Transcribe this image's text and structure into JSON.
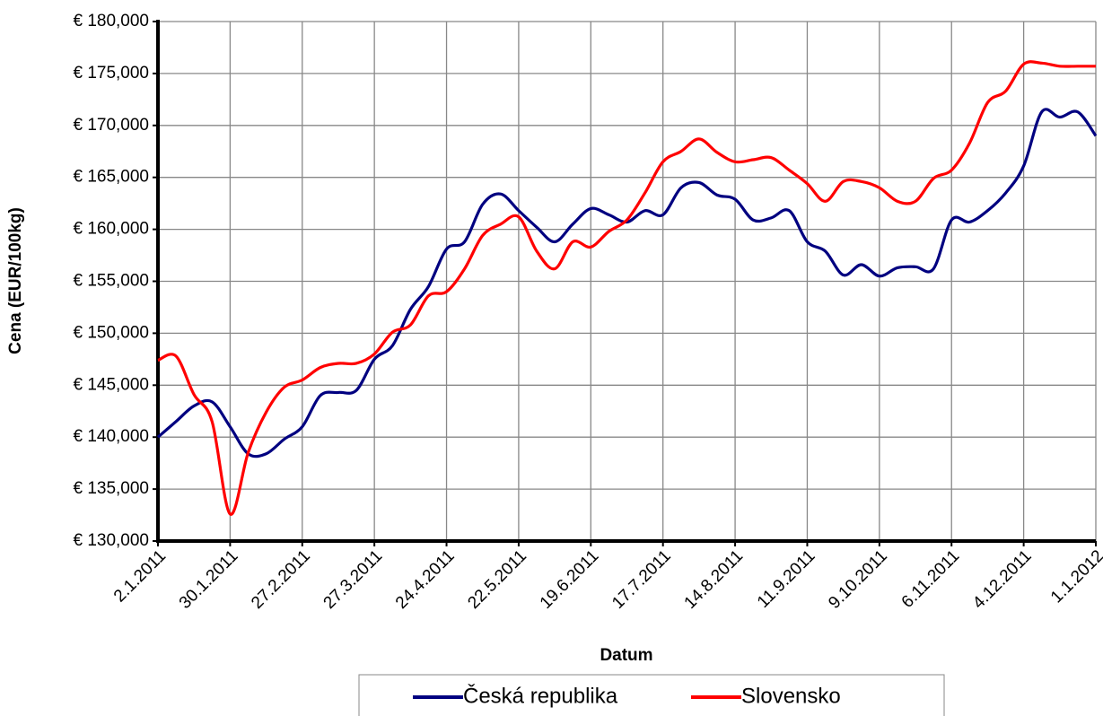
{
  "chart_data": {
    "type": "line",
    "x_label": "Datum",
    "y_label": "Cena (EUR/100kg)",
    "categories": [
      "2.1.2011",
      null,
      null,
      null,
      "30.1.2011",
      null,
      null,
      null,
      "27.2.2011",
      null,
      null,
      null,
      "27.3.2011",
      null,
      null,
      null,
      "24.4.2011",
      null,
      null,
      null,
      "22.5.2011",
      null,
      null,
      null,
      "19.6.2011",
      null,
      null,
      null,
      "17.7.2011",
      null,
      null,
      null,
      "14.8.2011",
      null,
      null,
      null,
      "11.9.2011",
      null,
      null,
      null,
      "9.10.2011",
      null,
      null,
      null,
      "6.11.2011",
      null,
      null,
      null,
      "4.12.2011",
      null,
      null,
      null,
      "1.1.2012"
    ],
    "series": [
      {
        "name": "Česká republika",
        "color": "#000080",
        "values": [
          140.0,
          141.5,
          143.0,
          143.4,
          141.0,
          138.4,
          138.4,
          139.8,
          141.0,
          144.0,
          144.3,
          144.5,
          147.5,
          148.8,
          152.3,
          154.5,
          158.1,
          158.8,
          162.4,
          163.4,
          161.8,
          160.2,
          158.8,
          160.5,
          162.0,
          161.4,
          160.7,
          161.8,
          161.4,
          164.0,
          164.5,
          163.3,
          162.9,
          160.9,
          161.1,
          161.8,
          158.8,
          157.9,
          155.6,
          156.6,
          155.5,
          156.3,
          156.4,
          156.2,
          160.9,
          160.7,
          161.8,
          163.5,
          166.1,
          171.3,
          170.8,
          171.3,
          169.0
        ]
      },
      {
        "name": "Slovensko",
        "color": "#ff0000",
        "values": [
          147.4,
          147.8,
          144.1,
          141.5,
          132.6,
          138.5,
          142.4,
          144.8,
          145.5,
          146.7,
          147.1,
          147.1,
          148.0,
          150.1,
          150.8,
          153.6,
          154.0,
          156.2,
          159.4,
          160.5,
          161.2,
          157.9,
          156.2,
          158.8,
          158.3,
          159.8,
          160.9,
          163.5,
          166.5,
          167.5,
          168.7,
          167.4,
          166.5,
          166.7,
          166.9,
          165.7,
          164.4,
          162.7,
          164.6,
          164.6,
          164.0,
          162.7,
          162.7,
          164.9,
          165.7,
          168.3,
          172.2,
          173.3,
          175.9,
          176.0,
          175.7,
          175.7,
          175.7
        ]
      }
    ],
    "ylim": [
      130,
      180
    ],
    "yticks": [
      {
        "value": 130,
        "label": "€ 130,000"
      },
      {
        "value": 135,
        "label": "€ 135,000"
      },
      {
        "value": 140,
        "label": "€ 140,000"
      },
      {
        "value": 145,
        "label": "€ 145,000"
      },
      {
        "value": 150,
        "label": "€ 150,000"
      },
      {
        "value": 155,
        "label": "€ 155,000"
      },
      {
        "value": 160,
        "label": "€ 160,000"
      },
      {
        "value": 165,
        "label": "€ 165,000"
      },
      {
        "value": 170,
        "label": "€ 170,000"
      },
      {
        "value": 175,
        "label": "€ 175,000"
      },
      {
        "value": 180,
        "label": "€ 180,000"
      }
    ],
    "grid": true,
    "legend": "bottom"
  }
}
